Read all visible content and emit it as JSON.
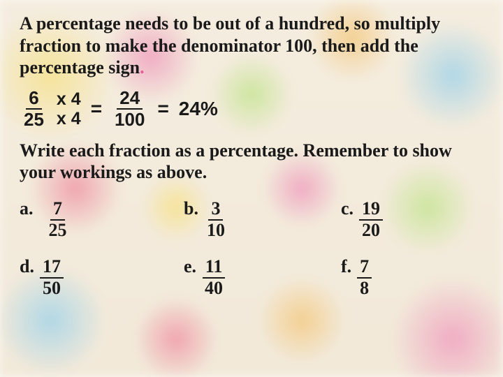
{
  "colors": {
    "text": "#1a1a1a",
    "accent_dot": "#e85a9c",
    "bg_base": "#f2e8d8",
    "bg_blobs": [
      "#f5d442",
      "#e85a9c",
      "#9dd84e",
      "#f0a830",
      "#5bb8e8",
      "#e84a6f"
    ]
  },
  "typography": {
    "body_family": "Georgia / Times New Roman (serif)",
    "example_family": "Arial / Helvetica (sans-serif)",
    "size_pt_main": 20,
    "weight": "bold"
  },
  "intro": {
    "text_part1": "A percentage needs to be out of a hundred, so multiply fraction to make the denominator 100, then add the percentage sign",
    "text_dot": "."
  },
  "example": {
    "frac1": {
      "num": "6",
      "den": "25"
    },
    "mult": {
      "top": "x 4",
      "bot": "x 4"
    },
    "eq1": "=",
    "frac2": {
      "num": "24",
      "den": "100"
    },
    "eq2": "=",
    "result": "24%"
  },
  "instruction": "Write each fraction as a percentage. Remember to show your workings as above.",
  "problems": {
    "layout": {
      "rows": 2,
      "cols": 3
    },
    "items": [
      {
        "label": "a.",
        "num": "7",
        "den": "25"
      },
      {
        "label": "b.",
        "num": "3",
        "den": "10"
      },
      {
        "label": "c.",
        "num": "19",
        "den": "20"
      },
      {
        "label": "d.",
        "num": "17",
        "den": "50"
      },
      {
        "label": "e.",
        "num": "11",
        "den": "40"
      },
      {
        "label": "f.",
        "num": "7",
        "den": "8"
      }
    ]
  }
}
